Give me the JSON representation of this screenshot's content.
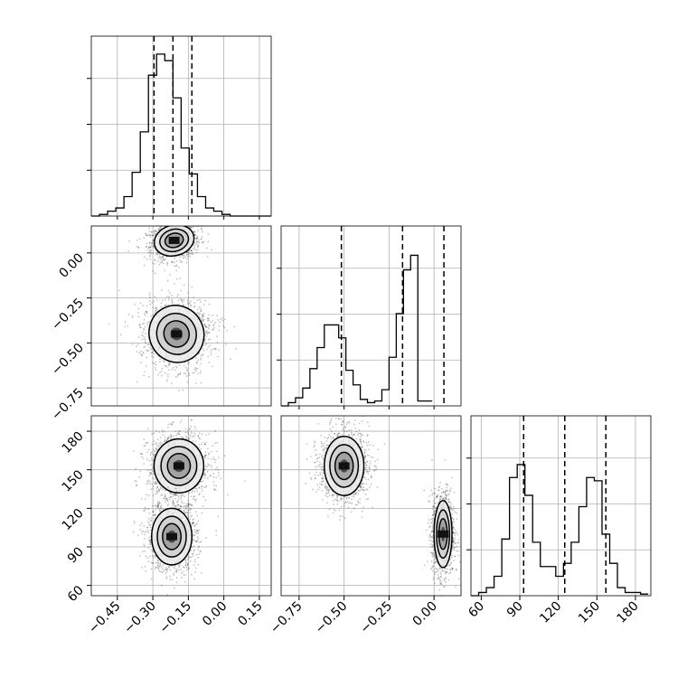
{
  "chart_data": {
    "type": "corner",
    "grid": true,
    "parameters": [
      "p0",
      "p1",
      "p2"
    ],
    "ticks": {
      "p0": {
        "values": [
          -0.45,
          -0.3,
          -0.15,
          0.0,
          0.15
        ],
        "labels": [
          "−0.45",
          "−0.30",
          "−0.15",
          "0.00",
          "0.15"
        ]
      },
      "p1": {
        "values": [
          -0.75,
          -0.5,
          -0.25,
          0.0
        ],
        "labels": [
          "−0.75",
          "−0.50",
          "−0.25",
          "0.00"
        ]
      },
      "p2": {
        "values": [
          60,
          90,
          120,
          150,
          180
        ],
        "labels": [
          "60",
          "90",
          "120",
          "150",
          "180"
        ]
      }
    },
    "ranges": {
      "p0": [
        -0.56,
        0.2
      ],
      "p1": [
        -0.85,
        0.15
      ],
      "p2": [
        52,
        192
      ]
    },
    "quantiles": {
      "p0": [
        -0.295,
        -0.215,
        -0.135
      ],
      "p1": [
        -0.515,
        -0.175,
        0.055
      ],
      "p2": [
        93,
        125,
        157
      ]
    },
    "histograms": {
      "p0": {
        "bin_start": -0.56,
        "bin_width": 0.0345,
        "counts": [
          0,
          0.01,
          0.03,
          0.05,
          0.12,
          0.27,
          0.52,
          0.87,
          1.0,
          0.96,
          0.73,
          0.42,
          0.26,
          0.12,
          0.05,
          0.03,
          0.01,
          0,
          0,
          0,
          0,
          0
        ]
      },
      "p1": {
        "bin_start": -0.85,
        "bin_width": 0.04,
        "counts": [
          0,
          0.02,
          0.05,
          0.11,
          0.23,
          0.36,
          0.5,
          0.5,
          0.42,
          0.22,
          0.13,
          0.04,
          0.02,
          0.03,
          0.1,
          0.3,
          0.57,
          0.84,
          0.93,
          0.03,
          0.03
        ]
      },
      "p2": {
        "bin_start": 52,
        "bin_width": 6,
        "counts": [
          0,
          0.02,
          0.05,
          0.12,
          0.35,
          0.73,
          0.81,
          0.62,
          0.33,
          0.18,
          0.18,
          0.12,
          0.2,
          0.33,
          0.55,
          0.73,
          0.71,
          0.38,
          0.2,
          0.05,
          0.02,
          0.02,
          0.01
        ]
      }
    },
    "modes_2d": {
      "p0_p1": [
        {
          "center": [
            -0.21,
            0.07
          ],
          "radii": [
            0.085,
            0.085
          ],
          "angle": 15,
          "points": 1100
        },
        {
          "center": [
            -0.2,
            -0.45
          ],
          "radii": [
            0.115,
            0.16
          ],
          "angle": 25,
          "points": 1400
        }
      ],
      "p0_p2": [
        {
          "center": [
            -0.19,
            153
          ],
          "radii": [
            0.105,
            21
          ],
          "angle": 0,
          "points": 1300
        },
        {
          "center": [
            -0.22,
            98
          ],
          "radii": [
            0.085,
            22
          ],
          "angle": 0,
          "points": 1300
        }
      ],
      "p1_p2": [
        {
          "center": [
            -0.5,
            153
          ],
          "radii": [
            0.11,
            23
          ],
          "angle": 0,
          "points": 1300
        },
        {
          "center": [
            0.05,
            100
          ],
          "radii": [
            0.05,
            26
          ],
          "angle": 0,
          "points": 1300
        }
      ]
    }
  }
}
